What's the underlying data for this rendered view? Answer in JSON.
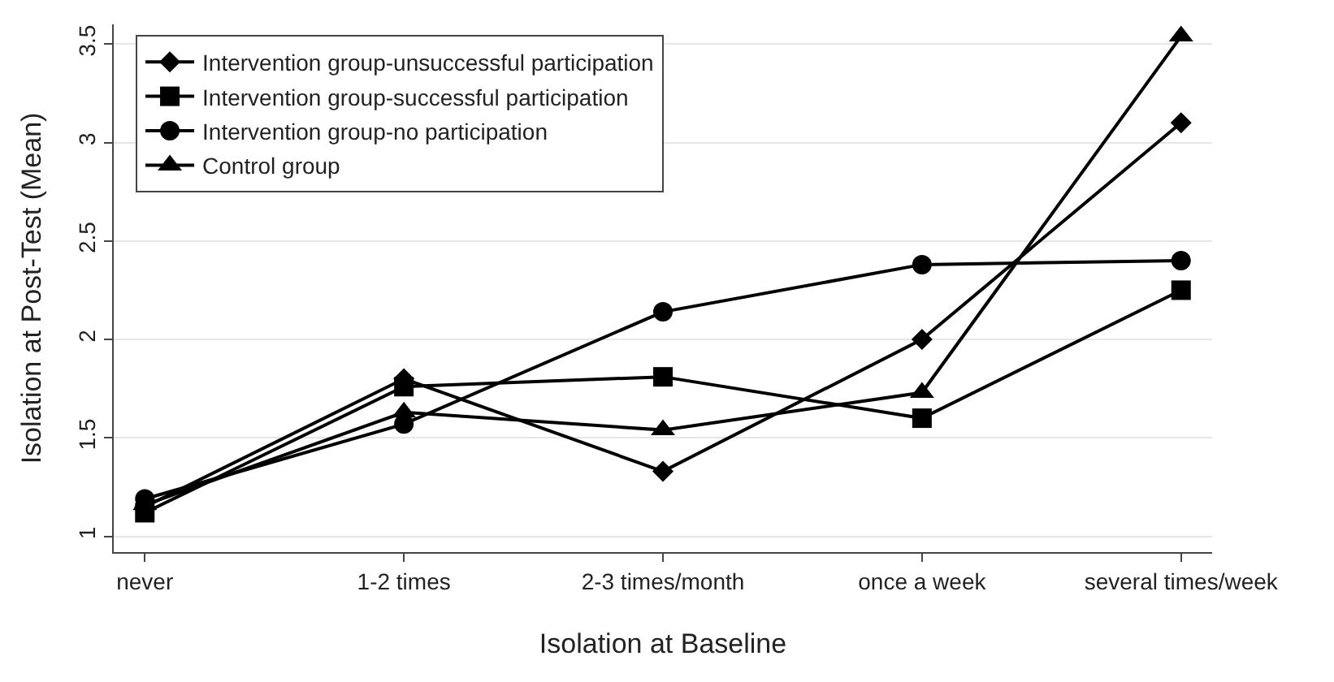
{
  "chart_data": {
    "type": "line",
    "xlabel": "Isolation at Baseline",
    "ylabel": "Isolation at Post-Test (Mean)",
    "categories": [
      "never",
      "1-2 times",
      "2-3 times/month",
      "once a week",
      "several times/week"
    ],
    "series": [
      {
        "name": "Intervention group-unsuccessful participation",
        "color": "#000000",
        "marker": "diamond",
        "values": [
          1.15,
          1.8,
          1.33,
          2.0,
          3.1
        ]
      },
      {
        "name": "Intervention group-successful participation",
        "color": "#000000",
        "marker": "square",
        "values": [
          1.12,
          1.76,
          1.81,
          1.6,
          2.25
        ]
      },
      {
        "name": "Intervention group-no participation",
        "color": "#000000",
        "marker": "circle",
        "values": [
          1.19,
          1.57,
          2.14,
          2.38,
          2.4
        ]
      },
      {
        "name": "Control group",
        "color": "#000000",
        "marker": "triangle",
        "values": [
          1.16,
          1.63,
          1.54,
          1.73,
          3.54
        ]
      }
    ],
    "ylim": [
      0.92,
      3.6
    ],
    "yticks": [
      1,
      1.5,
      2,
      2.5,
      3,
      3.5
    ],
    "grid": "y",
    "legend": "top left"
  }
}
